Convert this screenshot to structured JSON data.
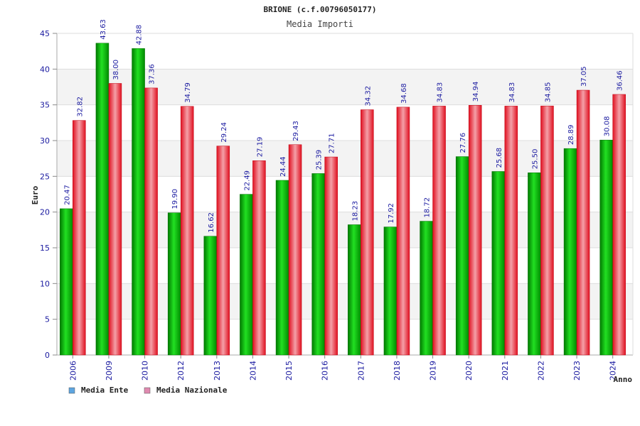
{
  "chart_data": {
    "type": "bar",
    "title": "BRIONE (c.f.00796050177)",
    "subtitle": "Media Importi",
    "xlabel": "Anno",
    "ylabel": "Euro",
    "ylim": [
      0,
      45
    ],
    "yticks": [
      0,
      5,
      10,
      15,
      20,
      25,
      30,
      35,
      40,
      45
    ],
    "categories": [
      "2006",
      "2009",
      "2010",
      "2012",
      "2013",
      "2014",
      "2015",
      "2016",
      "2017",
      "2018",
      "2019",
      "2020",
      "2021",
      "2022",
      "2023",
      "2024"
    ],
    "series": [
      {
        "name": "Media Ente",
        "color": "#00b000",
        "legend_color": "#5da5e0",
        "values": [
          20.47,
          43.63,
          42.88,
          19.9,
          16.62,
          22.49,
          24.44,
          25.39,
          18.23,
          17.92,
          18.72,
          27.76,
          25.68,
          25.5,
          28.89,
          30.08
        ],
        "labels": [
          "20.47",
          "43.63",
          "42.88",
          "19.90",
          "16.62",
          "22.49",
          "24.44",
          "25.39",
          "18.23",
          "17.92",
          "18.72",
          "27.76",
          "25.68",
          "25.50",
          "28.89",
          "30.08"
        ]
      },
      {
        "name": "Media Nazionale",
        "color": "#e82030",
        "legend_color": "#e08ab0",
        "values": [
          32.82,
          38.0,
          37.36,
          34.79,
          29.24,
          27.19,
          29.43,
          27.71,
          34.32,
          34.68,
          34.83,
          34.94,
          34.83,
          34.85,
          37.05,
          36.46
        ],
        "labels": [
          "32.82",
          "38.00",
          "37.36",
          "34.79",
          "29.24",
          "27.19",
          "29.43",
          "27.71",
          "34.32",
          "34.68",
          "34.83",
          "34.94",
          "34.83",
          "34.85",
          "37.05",
          "36.46"
        ]
      }
    ],
    "grid": true,
    "legend_position": "bottom-left"
  }
}
